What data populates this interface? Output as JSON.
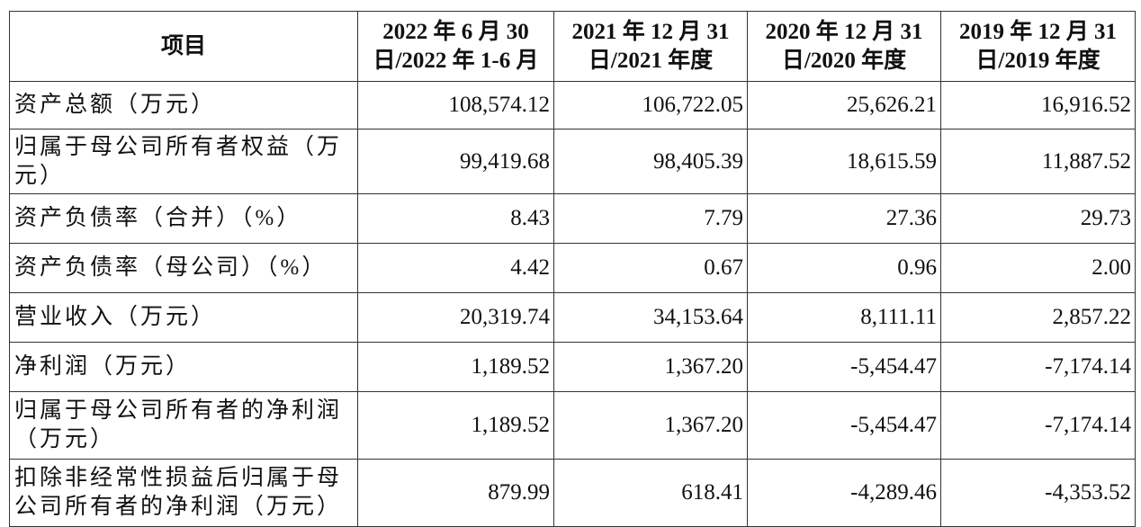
{
  "table": {
    "header": [
      [
        "项目"
      ],
      [
        "2022 年 6 月 30",
        "日/2022 年 1-6 月"
      ],
      [
        "2021 年 12 月 31",
        "日/2021 年度"
      ],
      [
        "2020 年 12 月 31",
        "日/2020 年度"
      ],
      [
        "2019 年 12 月 31",
        "日/2019 年度"
      ]
    ],
    "rows": [
      [
        [
          "资产总额（万元）"
        ],
        "108,574.12",
        "106,722.05",
        "25,626.21",
        "16,916.52"
      ],
      [
        [
          "归属于母公司所有者权益（万",
          "元）"
        ],
        "99,419.68",
        "98,405.39",
        "18,615.59",
        "11,887.52"
      ],
      [
        [
          "资产负债率（合并）（%）"
        ],
        "8.43",
        "7.79",
        "27.36",
        "29.73"
      ],
      [
        [
          "资产负债率（母公司）（%）"
        ],
        "4.42",
        "0.67",
        "0.96",
        "2.00"
      ],
      [
        [
          "营业收入（万元）"
        ],
        "20,319.74",
        "34,153.64",
        "8,111.11",
        "2,857.22"
      ],
      [
        [
          "净利润（万元）"
        ],
        "1,189.52",
        "1,367.20",
        "-5,454.47",
        "-7,174.14"
      ],
      [
        [
          "归属于母公司所有者的净利润",
          "（万元）"
        ],
        "1,189.52",
        "1,367.20",
        "-5,454.47",
        "-7,174.14"
      ],
      [
        [
          "扣除非经常性损益后归属于母",
          "公司所有者的净利润（万元）"
        ],
        "879.99",
        "618.41",
        "-4,289.46",
        "-4,353.52"
      ]
    ]
  }
}
